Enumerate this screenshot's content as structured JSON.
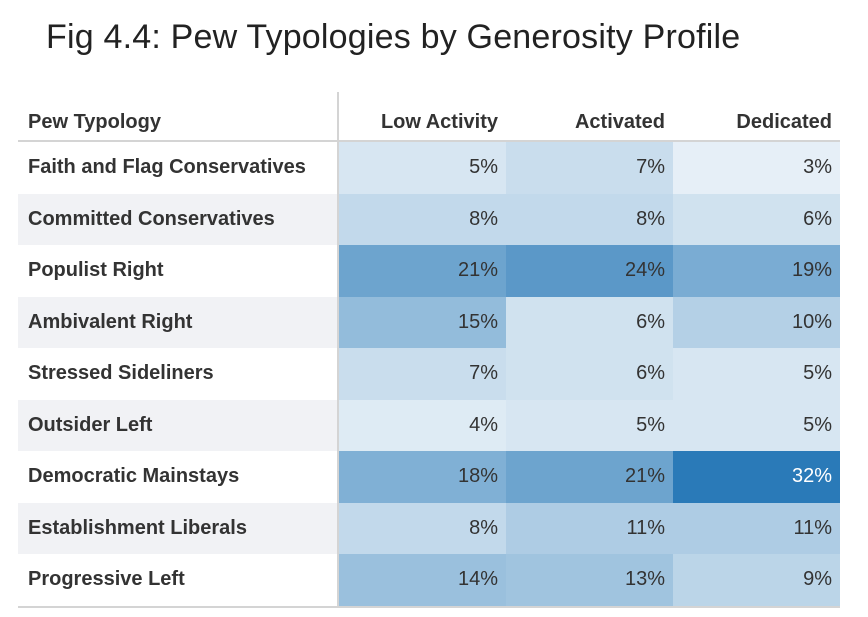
{
  "title": "Fig 4.4: Pew Typologies by Generosity Profile",
  "chart_data": {
    "type": "table",
    "title": "Fig 4.4: Pew Typologies by Generosity Profile",
    "row_header": "Pew Typology",
    "columns": [
      "Low Activity",
      "Activated",
      "Dedicated"
    ],
    "rows": [
      {
        "label": "Faith and Flag Conservatives",
        "values": [
          5,
          7,
          3
        ],
        "display": [
          "5%",
          "7%",
          "3%"
        ]
      },
      {
        "label": "Committed Conservatives",
        "values": [
          8,
          8,
          6
        ],
        "display": [
          "8%",
          "8%",
          "6%"
        ]
      },
      {
        "label": "Populist Right",
        "values": [
          21,
          24,
          19
        ],
        "display": [
          "21%",
          "24%",
          "19%"
        ]
      },
      {
        "label": "Ambivalent Right",
        "values": [
          15,
          6,
          10
        ],
        "display": [
          "15%",
          "6%",
          "10%"
        ]
      },
      {
        "label": "Stressed Sideliners",
        "values": [
          7,
          6,
          5
        ],
        "display": [
          "7%",
          "6%",
          "5%"
        ]
      },
      {
        "label": "Outsider Left",
        "values": [
          4,
          5,
          5
        ],
        "display": [
          "4%",
          "5%",
          "5%"
        ]
      },
      {
        "label": "Democratic Mainstays",
        "values": [
          18,
          21,
          32
        ],
        "display": [
          "18%",
          "21%",
          "32%"
        ]
      },
      {
        "label": "Establishment Liberals",
        "values": [
          8,
          11,
          11
        ],
        "display": [
          "8%",
          "11%",
          "11%"
        ]
      },
      {
        "label": "Progressive Left",
        "values": [
          14,
          13,
          9
        ],
        "display": [
          "14%",
          "13%",
          "9%"
        ]
      }
    ],
    "color_scale": {
      "low": "#ffffff",
      "high": "#2a7ab8",
      "min": 0,
      "max": 32
    }
  }
}
